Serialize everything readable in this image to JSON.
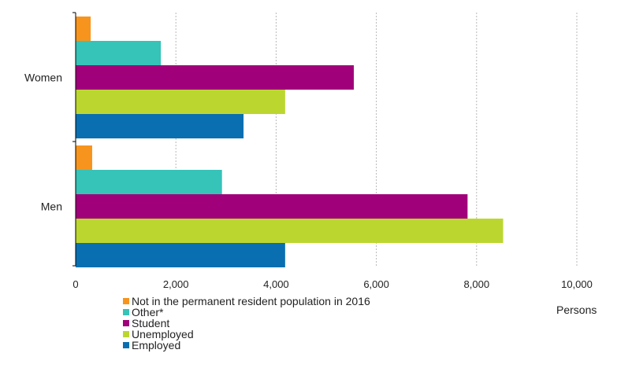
{
  "chart_data": {
    "type": "bar",
    "orientation": "horizontal",
    "categories": [
      "Women",
      "Men"
    ],
    "series": [
      {
        "name": "Not in the permanent resident population in 2016",
        "color": "#f7941d",
        "values": [
          300,
          330
        ]
      },
      {
        "name": "Other*",
        "color": "#36c3b8",
        "values": [
          1700,
          2920
        ]
      },
      {
        "name": "Student",
        "color": "#a0007a",
        "values": [
          5550,
          7820
        ]
      },
      {
        "name": "Unemployed",
        "color": "#bcd630",
        "values": [
          4180,
          8530
        ]
      },
      {
        "name": "Employed",
        "color": "#0a6fb0",
        "values": [
          3350,
          4180
        ]
      }
    ],
    "xlim": [
      0,
      10000
    ],
    "xticks": [
      {
        "value": 0,
        "label": "0"
      },
      {
        "value": 2000,
        "label": "2,000"
      },
      {
        "value": 4000,
        "label": "4,000"
      },
      {
        "value": 6000,
        "label": "6,000"
      },
      {
        "value": 8000,
        "label": "8,000"
      },
      {
        "value": 10000,
        "label": "10,000"
      }
    ],
    "xlabel": "Persons",
    "ylabel": "",
    "title": "",
    "grid": "vertical dashed",
    "legend_position": "bottom-left"
  }
}
